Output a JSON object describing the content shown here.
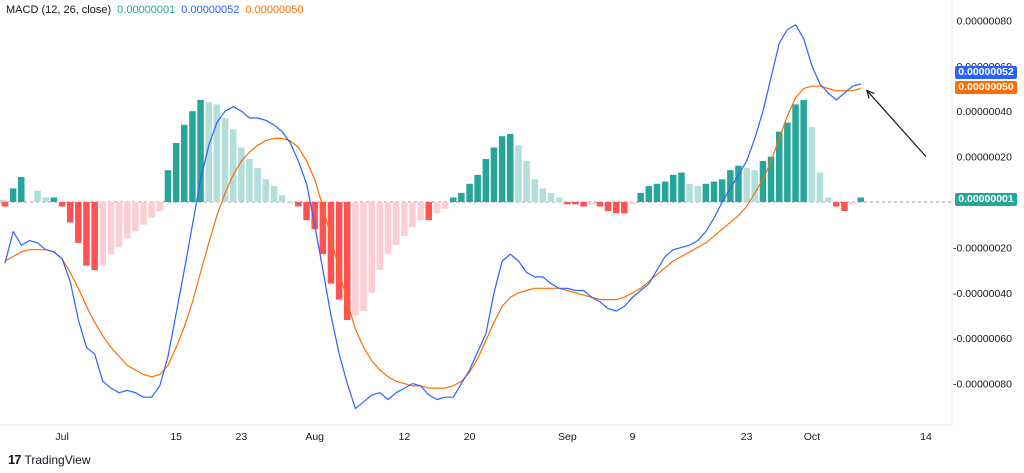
{
  "legend": {
    "study": "MACD (12, 26, close)",
    "histogram_value": "0.00000001",
    "macd_value": "0.00000052",
    "signal_value": "0.00000050"
  },
  "branding": {
    "name": "TradingView",
    "logo_glyph": "17"
  },
  "colors": {
    "macd_line": "#2962ff",
    "signal_line": "#ff6d00",
    "hist_up_strong": "#26a69a",
    "hist_up_weak": "#b2dfdb",
    "hist_down_strong": "#ff5252",
    "hist_down_weak": "#ffcdd2",
    "histogram_badge": "#26a69a",
    "macd_badge": "#2962ff",
    "signal_badge": "#ff6d00"
  },
  "chart_data": {
    "type": "line",
    "ylim": [
      -1e-06,
      8.5e-07
    ],
    "y_ticks": [
      {
        "value": 8e-07,
        "label": "0.00000080"
      },
      {
        "value": 6e-07,
        "label": "0.00000060"
      },
      {
        "value": 4e-07,
        "label": "0.00000040"
      },
      {
        "value": 2e-07,
        "label": "0.00000020"
      },
      {
        "value": -2e-07,
        "label": "-0.00000020"
      },
      {
        "value": -4e-07,
        "label": "-0.00000040"
      },
      {
        "value": -6e-07,
        "label": "-0.00000060"
      },
      {
        "value": -8e-07,
        "label": "-0.00000080"
      }
    ],
    "x_ticks": [
      {
        "bar": 7,
        "label": "Jul"
      },
      {
        "bar": 21,
        "label": "15"
      },
      {
        "bar": 29,
        "label": "23"
      },
      {
        "bar": 38,
        "label": "Aug"
      },
      {
        "bar": 49,
        "label": "12"
      },
      {
        "bar": 57,
        "label": "20"
      },
      {
        "bar": 69,
        "label": "Sep"
      },
      {
        "bar": 77,
        "label": "9"
      },
      {
        "bar": 91,
        "label": "23"
      },
      {
        "bar": 99,
        "label": "Oct"
      },
      {
        "bar": 113,
        "label": "14"
      }
    ],
    "bar_count": 106,
    "macd": [
      -2.7e-07,
      -1.3e-07,
      -1.9e-07,
      -1.7e-07,
      -1.8e-07,
      -2.1e-07,
      -2.2e-07,
      -2.5e-07,
      -3.5e-07,
      -5.2e-07,
      -6.4e-07,
      -6.7e-07,
      -7.9e-07,
      -8.2e-07,
      -8.4e-07,
      -8.3e-07,
      -8.4e-07,
      -8.6e-07,
      -8.6e-07,
      -8.1e-07,
      -6.8e-07,
      -4.9e-07,
      -3e-07,
      -1e-07,
      1e-07,
      2.5e-07,
      3.5e-07,
      4e-07,
      4.2e-07,
      4e-07,
      3.7e-07,
      3.7e-07,
      3.6e-07,
      3.4e-07,
      3.1e-07,
      2.6e-07,
      1.8e-07,
      8e-08,
      -1e-07,
      -3e-07,
      -5e-07,
      -6.7e-07,
      -8e-07,
      -9.1e-07,
      -8.8e-07,
      -8.5e-07,
      -8.4e-07,
      -8.7e-07,
      -8.4e-07,
      -8.2e-07,
      -8e-07,
      -8.1e-07,
      -8.5e-07,
      -8.7e-07,
      -8.6e-07,
      -8.6e-07,
      -8e-07,
      -7.4e-07,
      -6.6e-07,
      -5.8e-07,
      -4e-07,
      -2.6e-07,
      -2.3e-07,
      -2.6e-07,
      -3.1e-07,
      -3.3e-07,
      -3.3e-07,
      -3.6e-07,
      -3.8e-07,
      -3.8e-07,
      -3.9e-07,
      -3.9e-07,
      -4.2e-07,
      -4.4e-07,
      -4.7e-07,
      -4.8e-07,
      -4.6e-07,
      -4.2e-07,
      -3.9e-07,
      -3.6e-07,
      -3e-07,
      -2.4e-07,
      -2.1e-07,
      -2e-07,
      -1.9e-07,
      -1.7e-07,
      -1.3e-07,
      -7e-08,
      0.0,
      6e-08,
      1.2e-07,
      1.8e-07,
      2.8e-07,
      4e-07,
      5.5e-07,
      7e-07,
      7.6e-07,
      7.8e-07,
      7.2e-07,
      6e-07,
      5.2e-07,
      4.8e-07,
      4.5e-07,
      4.8e-07,
      5.1e-07,
      5.2e-07
    ],
    "signal": [
      -2.6e-07,
      -2.4e-07,
      -2.2e-07,
      -2.1e-07,
      -2.1e-07,
      -2.1e-07,
      -2.2e-07,
      -2.5e-07,
      -3.1e-07,
      -3.8e-07,
      -4.6e-07,
      -5.3e-07,
      -5.9e-07,
      -6.4e-07,
      -6.8e-07,
      -7.2e-07,
      -7.4e-07,
      -7.6e-07,
      -7.7e-07,
      -7.6e-07,
      -7.2e-07,
      -6.4e-07,
      -5.5e-07,
      -4.4e-07,
      -3.1e-07,
      -1.8e-07,
      -6e-08,
      4e-08,
      1.2e-07,
      1.8e-07,
      2.2e-07,
      2.5e-07,
      2.7e-07,
      2.8e-07,
      2.8e-07,
      2.7e-07,
      2.4e-07,
      1.8e-07,
      1e-07,
      -2e-08,
      -1.6e-07,
      -3e-07,
      -4.4e-07,
      -5.6e-07,
      -6.4e-07,
      -7e-07,
      -7.4e-07,
      -7.7e-07,
      -7.9e-07,
      -8e-07,
      -8.1e-07,
      -8.1e-07,
      -8.2e-07,
      -8.2e-07,
      -8.2e-07,
      -8.1e-07,
      -7.9e-07,
      -7.5e-07,
      -6.9e-07,
      -6.1e-07,
      -5.3e-07,
      -4.6e-07,
      -4.2e-07,
      -4e-07,
      -3.9e-07,
      -3.8e-07,
      -3.8e-07,
      -3.8e-07,
      -3.8e-07,
      -3.9e-07,
      -4e-07,
      -4.1e-07,
      -4.2e-07,
      -4.3e-07,
      -4.3e-07,
      -4.3e-07,
      -4.2e-07,
      -4e-07,
      -3.8e-07,
      -3.5e-07,
      -3.2e-07,
      -2.9e-07,
      -2.6e-07,
      -2.4e-07,
      -2.2e-07,
      -2e-07,
      -1.8e-07,
      -1.5e-07,
      -1.2e-07,
      -9e-08,
      -6e-08,
      -2e-08,
      4e-08,
      1e-07,
      1.8e-07,
      2.8e-07,
      3.8e-07,
      4.6e-07,
      5e-07,
      5.1e-07,
      5.1e-07,
      5e-07,
      4.9e-07,
      4.9e-07,
      4.9e-07,
      5e-07
    ],
    "histogram_bars": [
      0,
      1,
      2,
      4,
      5,
      6,
      7,
      8,
      9,
      10,
      11,
      12,
      13,
      14,
      15,
      16,
      17,
      18,
      19,
      20,
      21,
      22,
      23,
      24,
      25,
      26,
      27,
      28,
      29,
      30,
      31,
      32,
      33,
      34,
      35,
      36,
      37,
      38,
      39,
      40,
      41,
      42,
      43,
      44,
      45,
      46,
      47,
      48,
      49,
      50,
      51,
      52,
      53,
      54,
      55,
      56,
      57,
      58,
      59,
      60,
      61,
      62,
      63,
      64,
      65,
      66,
      67,
      68,
      69,
      70,
      71,
      72,
      73,
      74,
      75,
      76,
      77,
      78,
      79,
      80,
      81,
      82,
      83,
      84,
      85,
      86,
      87,
      88,
      89,
      90,
      91,
      92,
      93,
      94,
      95,
      96,
      97,
      98,
      99,
      100,
      101,
      102,
      103,
      104,
      105
    ],
    "histogram": [
      -2e-08,
      6e-08,
      1.1e-07,
      5e-08,
      2e-08,
      2e-08,
      -2e-08,
      -9e-08,
      -1.8e-07,
      -2.8e-07,
      -3e-07,
      -2.8e-07,
      -2.3e-07,
      -2e-07,
      -1.6e-07,
      -1.3e-07,
      -1e-07,
      -7e-08,
      -4e-08,
      1.4e-07,
      2.6e-07,
      3.4e-07,
      4e-07,
      4.5e-07,
      4.4e-07,
      4.3e-07,
      3.7e-07,
      3.2e-07,
      2.4e-07,
      1.9e-07,
      1.5e-07,
      1e-07,
      7e-08,
      3e-08,
      0.0,
      -2e-08,
      -8e-08,
      -1.2e-07,
      -2.3e-07,
      -3.6e-07,
      -4.3e-07,
      -5.2e-07,
      -5e-07,
      -4.8e-07,
      -4e-07,
      -3e-07,
      -2.3e-07,
      -1.9e-07,
      -1.5e-07,
      -1.1e-07,
      -8e-08,
      -8e-08,
      -5e-08,
      -3e-08,
      2e-08,
      4e-08,
      8e-08,
      1.2e-07,
      1.9e-07,
      2.4e-07,
      2.9e-07,
      3e-07,
      2.5e-07,
      1.8e-07,
      1e-07,
      6e-08,
      4e-08,
      2e-08,
      -1e-08,
      -1e-08,
      -2e-08,
      -1e-08,
      -2e-08,
      -4e-08,
      -5e-08,
      -5e-08,
      -1e-08,
      4e-08,
      7e-08,
      8e-08,
      9e-08,
      1.2e-07,
      1.3e-07,
      8e-08,
      7e-08,
      8e-08,
      9e-08,
      1e-07,
      1.4e-07,
      1.6e-07,
      1.5e-07,
      1.4e-07,
      1.8e-07,
      2e-07,
      3.1e-07,
      3.5e-07,
      4.3e-07,
      4.5e-07,
      3.3e-07,
      1.3e-07,
      2e-08,
      -2e-08,
      -4e-08,
      -1e-08,
      2e-08,
      1e-08
    ],
    "zero_line": true,
    "current_values": [
      {
        "series": "macd",
        "label": "0.00000052",
        "value": 5.2e-07
      },
      {
        "series": "signal",
        "label": "0.00000050",
        "value": 5e-07
      },
      {
        "series": "histogram",
        "label": "0.00000001",
        "value": 1e-08
      }
    ],
    "annotation": {
      "type": "arrow",
      "from_bar": 113,
      "from_value": 2e-07,
      "to_bar": 106,
      "to_value": 5e-07
    }
  }
}
